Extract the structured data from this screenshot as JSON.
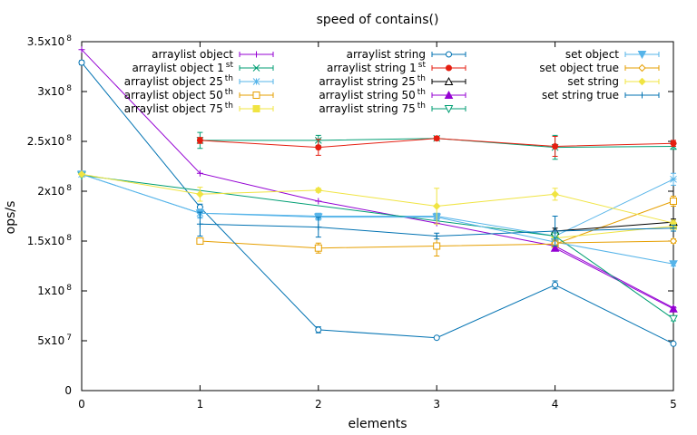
{
  "chart_data": {
    "type": "line",
    "title": "speed of contains()",
    "xlabel": "elements",
    "ylabel": "ops/s",
    "xlim": [
      0,
      5
    ],
    "ylim": [
      0,
      350000000
    ],
    "x_ticks": [
      {
        "value": 0,
        "label": "0"
      },
      {
        "value": 1,
        "label": "1"
      },
      {
        "value": 2,
        "label": "2"
      },
      {
        "value": 3,
        "label": "3"
      },
      {
        "value": 4,
        "label": "4"
      },
      {
        "value": 5,
        "label": "5"
      }
    ],
    "y_ticks": [
      {
        "value": 0,
        "label": "0",
        "sup": ""
      },
      {
        "value": 50000000,
        "label": "5x10",
        "sup": "7"
      },
      {
        "value": 100000000,
        "label": "1x10",
        "sup": "8"
      },
      {
        "value": 150000000,
        "label": "1.5x10",
        "sup": "8"
      },
      {
        "value": 200000000,
        "label": "2x10",
        "sup": "8"
      },
      {
        "value": 250000000,
        "label": "2.5x10",
        "sup": "8"
      },
      {
        "value": 300000000,
        "label": "3x10",
        "sup": "8"
      },
      {
        "value": 350000000,
        "label": "3.5x10",
        "sup": "8"
      }
    ],
    "grid": false,
    "legend_position": "top",
    "series": [
      {
        "name": "arraylist object",
        "sup": "",
        "color": "#9400d3",
        "marker": "plus",
        "x": [
          0,
          1,
          2,
          3,
          4,
          5
        ],
        "y": [
          342000000,
          218000000,
          190000000,
          168000000,
          145000000,
          83000000
        ],
        "err": [
          0,
          0,
          0,
          0,
          0,
          0
        ]
      },
      {
        "name": "arraylist object 1",
        "sup": "st",
        "color": "#009e73",
        "marker": "cross",
        "x": [
          1,
          2,
          3,
          4,
          5
        ],
        "y": [
          251000000,
          251000000,
          253000000,
          244000000,
          245000000
        ],
        "err": [
          8000000,
          5000000,
          2000000,
          12000000,
          3000000
        ]
      },
      {
        "name": "arraylist object 25",
        "sup": "th",
        "color": "#56b4e9",
        "marker": "star",
        "x": [
          0,
          1,
          2,
          3,
          4,
          5
        ],
        "y": [
          217000000,
          178000000,
          175000000,
          175000000,
          155000000,
          212000000
        ],
        "err": [
          0,
          5000000,
          3000000,
          3000000,
          4000000,
          6000000
        ]
      },
      {
        "name": "arraylist object 50",
        "sup": "th",
        "color": "#e69f00",
        "marker": "box",
        "x": [
          1,
          2,
          3,
          4,
          5
        ],
        "y": [
          150000000,
          143000000,
          145000000,
          147000000,
          190000000
        ],
        "err": [
          2000000,
          5000000,
          10000000,
          5000000,
          5000000
        ]
      },
      {
        "name": "arraylist object 75",
        "sup": "th",
        "color": "#f0e442",
        "marker": "boxf",
        "x": [
          4,
          5
        ],
        "y": [
          153000000,
          165000000
        ],
        "err": [
          3000000,
          3000000
        ]
      },
      {
        "name": "arraylist string",
        "sup": "",
        "color": "#0072b2",
        "marker": "circle",
        "x": [
          0,
          1,
          2,
          3,
          4,
          5
        ],
        "y": [
          329000000,
          184000000,
          61000000,
          53000000,
          106000000,
          47000000
        ],
        "err": [
          2000000,
          3000000,
          3000000,
          1000000,
          4000000,
          1000000
        ]
      },
      {
        "name": "arraylist string 1",
        "sup": "st",
        "color": "#e51e10",
        "marker": "circlef",
        "x": [
          1,
          2,
          3,
          4,
          5
        ],
        "y": [
          251000000,
          244000000,
          253000000,
          245000000,
          248000000
        ],
        "err": [
          3000000,
          8000000,
          2000000,
          10000000,
          3000000
        ]
      },
      {
        "name": "arraylist string 25",
        "sup": "th",
        "color": "#000000",
        "marker": "triangle",
        "x": [
          4,
          5
        ],
        "y": [
          160000000,
          169000000
        ],
        "err": [
          3000000,
          3000000
        ]
      },
      {
        "name": "arraylist string 50",
        "sup": "th",
        "color": "#9400d3",
        "marker": "trianglef",
        "x": [
          4,
          5
        ],
        "y": [
          143000000,
          82000000
        ],
        "err": [
          3000000,
          2000000
        ]
      },
      {
        "name": "arraylist string 75",
        "sup": "th",
        "color": "#009e73",
        "marker": "itriangle",
        "x": [
          0,
          4,
          5
        ],
        "y": [
          216000000,
          155000000,
          72000000
        ],
        "err": [
          0,
          3000000,
          2000000
        ]
      },
      {
        "name": "set object",
        "sup": "",
        "color": "#56b4e9",
        "marker": "itrianglef",
        "x": [
          0,
          1,
          2,
          3,
          4,
          5
        ],
        "y": [
          217000000,
          178000000,
          174000000,
          174000000,
          149000000,
          127000000
        ],
        "err": [
          0,
          4000000,
          3000000,
          3000000,
          3000000,
          2000000
        ]
      },
      {
        "name": "set object true",
        "sup": "",
        "color": "#e69f00",
        "marker": "diamond",
        "x": [
          4,
          5
        ],
        "y": [
          148000000,
          150000000
        ],
        "err": [
          3000000,
          2000000
        ]
      },
      {
        "name": "set string",
        "sup": "",
        "color": "#f0e442",
        "marker": "diamondf",
        "x": [
          0,
          1,
          2,
          3,
          4,
          5
        ],
        "y": [
          217000000,
          197000000,
          201000000,
          185000000,
          197000000,
          168000000
        ],
        "err": [
          0,
          7000000,
          2000000,
          18000000,
          6000000,
          3000000
        ]
      },
      {
        "name": "set string true",
        "sup": "",
        "color": "#0072b2",
        "marker": "plus",
        "x": [
          1,
          2,
          3,
          4,
          5
        ],
        "y": [
          167000000,
          164000000,
          155000000,
          160000000,
          163000000
        ],
        "err": [
          12000000,
          10000000,
          3000000,
          15000000,
          3000000
        ]
      }
    ]
  }
}
